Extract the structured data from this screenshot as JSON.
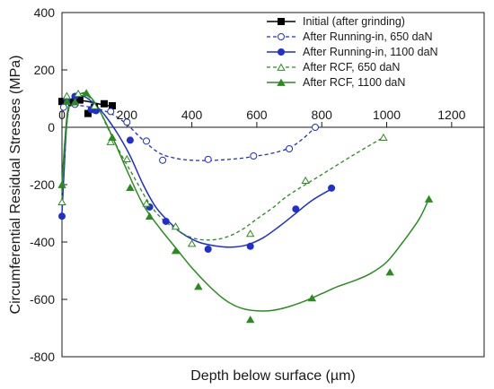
{
  "chart_data": {
    "type": "line",
    "xlabel": "Depth below surface (µm)",
    "ylabel": "Circumferential Residual Stresses (MPa)",
    "xlim": [
      0,
      1300
    ],
    "ylim": [
      -800,
      400
    ],
    "x_ticks": [
      0,
      200,
      400,
      600,
      800,
      1000,
      1200
    ],
    "y_ticks": [
      400,
      200,
      0,
      -200,
      -400,
      -600,
      -800
    ],
    "zero_line": true,
    "grid": false,
    "legend_position": "top-right",
    "series": [
      {
        "name": "Initial (after grinding)",
        "color": "#000000",
        "marker": "square",
        "filled": true,
        "line_style": "solid",
        "points": [
          [
            0,
            90
          ],
          [
            30,
            88
          ],
          [
            55,
            95
          ],
          [
            80,
            48
          ],
          [
            100,
            70
          ],
          [
            130,
            82
          ],
          [
            155,
            75
          ]
        ],
        "curve": [
          [
            0,
            88
          ],
          [
            20,
            90
          ],
          [
            40,
            92
          ],
          [
            60,
            93
          ],
          [
            80,
            90
          ],
          [
            100,
            85
          ],
          [
            120,
            80
          ],
          [
            140,
            76
          ],
          [
            155,
            73
          ]
        ]
      },
      {
        "name": "After Running-in, 650 daN",
        "color": "#1f2fd0",
        "marker": "circle",
        "filled": false,
        "line_style": "dashed",
        "points": [
          [
            5,
            70
          ],
          [
            40,
            80
          ],
          [
            100,
            60
          ],
          [
            150,
            55
          ],
          [
            200,
            18
          ],
          [
            260,
            -48
          ],
          [
            310,
            -115
          ],
          [
            450,
            -112
          ],
          [
            590,
            -100
          ],
          [
            700,
            -75
          ],
          [
            780,
            0
          ]
        ],
        "curve": [
          [
            0,
            65
          ],
          [
            40,
            77
          ],
          [
            100,
            67
          ],
          [
            150,
            48
          ],
          [
            200,
            10
          ],
          [
            250,
            -45
          ],
          [
            300,
            -90
          ],
          [
            350,
            -108
          ],
          [
            400,
            -115
          ],
          [
            450,
            -116
          ],
          [
            500,
            -113
          ],
          [
            550,
            -108
          ],
          [
            600,
            -100
          ],
          [
            650,
            -90
          ],
          [
            700,
            -72
          ],
          [
            740,
            -42
          ],
          [
            780,
            0
          ]
        ]
      },
      {
        "name": "After Running-in, 1100 daN",
        "color": "#1f2fd0",
        "marker": "circle",
        "filled": true,
        "line_style": "solid",
        "points": [
          [
            0,
            -310
          ],
          [
            15,
            95
          ],
          [
            40,
            108
          ],
          [
            90,
            62
          ],
          [
            105,
            58
          ],
          [
            210,
            -45
          ],
          [
            270,
            -278
          ],
          [
            320,
            -328
          ],
          [
            450,
            -425
          ],
          [
            580,
            -415
          ],
          [
            720,
            -285
          ],
          [
            830,
            -212
          ]
        ],
        "curve": [
          [
            0,
            -300
          ],
          [
            8,
            -120
          ],
          [
            15,
            20
          ],
          [
            25,
            85
          ],
          [
            40,
            108
          ],
          [
            60,
            110
          ],
          [
            80,
            100
          ],
          [
            100,
            80
          ],
          [
            130,
            45
          ],
          [
            170,
            -20
          ],
          [
            210,
            -100
          ],
          [
            250,
            -200
          ],
          [
            290,
            -280
          ],
          [
            330,
            -330
          ],
          [
            370,
            -370
          ],
          [
            420,
            -400
          ],
          [
            470,
            -413
          ],
          [
            520,
            -418
          ],
          [
            570,
            -410
          ],
          [
            620,
            -385
          ],
          [
            670,
            -345
          ],
          [
            720,
            -300
          ],
          [
            770,
            -255
          ],
          [
            830,
            -215
          ]
        ]
      },
      {
        "name": "After RCF, 650 daN",
        "color": "#2a8c1e",
        "marker": "triangle",
        "filled": false,
        "line_style": "dashed",
        "points": [
          [
            0,
            -260
          ],
          [
            15,
            110
          ],
          [
            50,
            118
          ],
          [
            100,
            75
          ],
          [
            150,
            -50
          ],
          [
            200,
            -110
          ],
          [
            260,
            -265
          ],
          [
            350,
            -345
          ],
          [
            400,
            -405
          ],
          [
            580,
            -370
          ],
          [
            750,
            -185
          ],
          [
            990,
            -35
          ]
        ],
        "curve": [
          [
            0,
            -250
          ],
          [
            8,
            -100
          ],
          [
            18,
            40
          ],
          [
            30,
            95
          ],
          [
            50,
            118
          ],
          [
            80,
            108
          ],
          [
            110,
            70
          ],
          [
            140,
            0
          ],
          [
            180,
            -90
          ],
          [
            220,
            -170
          ],
          [
            260,
            -250
          ],
          [
            300,
            -310
          ],
          [
            350,
            -355
          ],
          [
            400,
            -385
          ],
          [
            450,
            -393
          ],
          [
            500,
            -385
          ],
          [
            550,
            -360
          ],
          [
            600,
            -320
          ],
          [
            650,
            -280
          ],
          [
            700,
            -235
          ],
          [
            800,
            -165
          ],
          [
            900,
            -95
          ],
          [
            990,
            -35
          ]
        ]
      },
      {
        "name": "After RCF, 1100 daN",
        "color": "#2a8c1e",
        "marker": "triangle",
        "filled": true,
        "line_style": "solid",
        "points": [
          [
            0,
            -200
          ],
          [
            15,
            90
          ],
          [
            40,
            88
          ],
          [
            75,
            120
          ],
          [
            155,
            -35
          ],
          [
            210,
            -210
          ],
          [
            270,
            -310
          ],
          [
            350,
            -430
          ],
          [
            420,
            -555
          ],
          [
            580,
            -670
          ],
          [
            770,
            -595
          ],
          [
            1010,
            -505
          ],
          [
            1130,
            -250
          ]
        ],
        "curve": [
          [
            0,
            -200
          ],
          [
            8,
            -60
          ],
          [
            18,
            60
          ],
          [
            35,
            100
          ],
          [
            60,
            118
          ],
          [
            80,
            115
          ],
          [
            110,
            70
          ],
          [
            150,
            -20
          ],
          [
            200,
            -150
          ],
          [
            250,
            -270
          ],
          [
            300,
            -350
          ],
          [
            350,
            -420
          ],
          [
            400,
            -490
          ],
          [
            450,
            -550
          ],
          [
            500,
            -600
          ],
          [
            550,
            -630
          ],
          [
            600,
            -640
          ],
          [
            650,
            -638
          ],
          [
            700,
            -625
          ],
          [
            750,
            -605
          ],
          [
            800,
            -580
          ],
          [
            850,
            -555
          ],
          [
            900,
            -535
          ],
          [
            950,
            -510
          ],
          [
            1000,
            -470
          ],
          [
            1050,
            -400
          ],
          [
            1100,
            -320
          ],
          [
            1130,
            -250
          ]
        ]
      }
    ]
  }
}
